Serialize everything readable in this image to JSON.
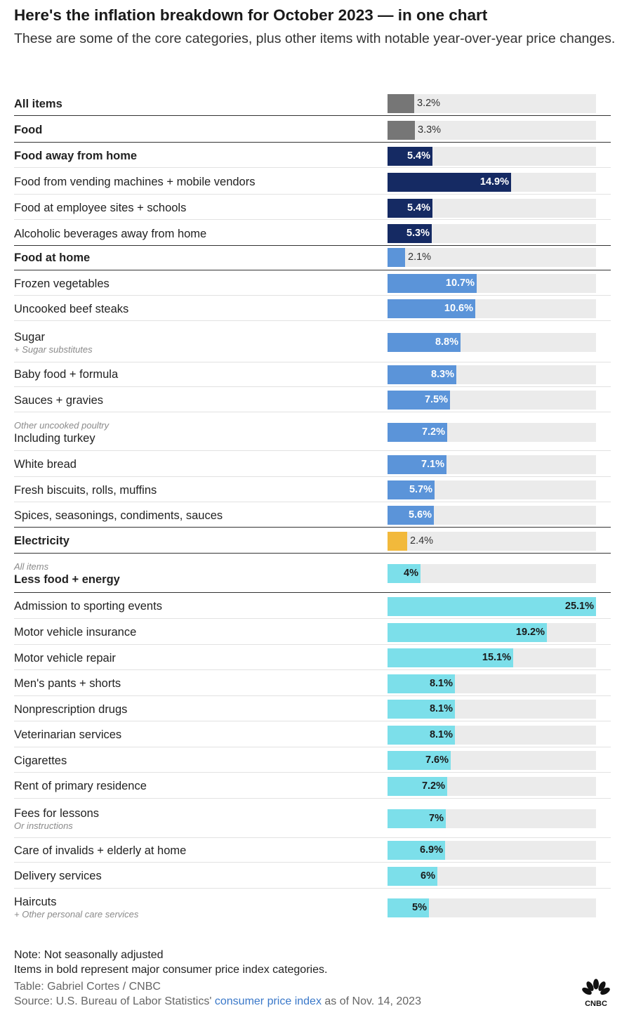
{
  "header": {
    "title": "Here's the inflation breakdown for October 2023 — in one chart",
    "subtitle": "These are some of the core categories, plus other items with notable year-over-year price changes."
  },
  "colors": {
    "grey": "#767676",
    "navy": "#152a63",
    "blue": "#5b94d9",
    "yellow": "#f2b93b",
    "teal": "#7cdfea",
    "track": "#ebebeb"
  },
  "chart_data": {
    "type": "bar",
    "orientation": "horizontal",
    "unit": "%",
    "xlim": [
      0,
      25.1
    ],
    "rows": [
      {
        "label": "All items",
        "value": 3.2,
        "display": "3.2%",
        "bold": true,
        "group": "grey"
      },
      {
        "label": "Food",
        "value": 3.3,
        "display": "3.3%",
        "bold": true,
        "group": "grey"
      },
      {
        "label": "Food away from home",
        "value": 5.4,
        "display": "5.4%",
        "bold": true,
        "group": "navy"
      },
      {
        "label": "Food from vending machines + mobile vendors",
        "value": 14.9,
        "display": "14.9%",
        "bold": false,
        "group": "navy"
      },
      {
        "label": "Food at employee sites + schools",
        "value": 5.4,
        "display": "5.4%",
        "bold": false,
        "group": "navy"
      },
      {
        "label": "Alcoholic beverages away from home",
        "value": 5.3,
        "display": "5.3%",
        "bold": false,
        "group": "navy"
      },
      {
        "label": "Food at home",
        "value": 2.1,
        "display": "2.1%",
        "bold": true,
        "group": "blue"
      },
      {
        "label": "Frozen vegetables",
        "value": 10.7,
        "display": "10.7%",
        "bold": false,
        "group": "blue"
      },
      {
        "label": "Uncooked beef steaks",
        "value": 10.6,
        "display": "10.6%",
        "bold": false,
        "group": "blue"
      },
      {
        "label": "Sugar",
        "note_below": "+ Sugar substitutes",
        "value": 8.8,
        "display": "8.8%",
        "bold": false,
        "group": "blue"
      },
      {
        "label": "Baby food + formula",
        "value": 8.3,
        "display": "8.3%",
        "bold": false,
        "group": "blue"
      },
      {
        "label": "Sauces + gravies",
        "value": 7.5,
        "display": "7.5%",
        "bold": false,
        "group": "blue"
      },
      {
        "label": "Including turkey",
        "note_above": "Other uncooked poultry",
        "value": 7.2,
        "display": "7.2%",
        "bold": false,
        "group": "blue"
      },
      {
        "label": "White bread",
        "value": 7.1,
        "display": "7.1%",
        "bold": false,
        "group": "blue"
      },
      {
        "label": "Fresh biscuits, rolls, muffins",
        "value": 5.7,
        "display": "5.7%",
        "bold": false,
        "group": "blue"
      },
      {
        "label": "Spices, seasonings, condiments, sauces",
        "value": 5.6,
        "display": "5.6%",
        "bold": false,
        "group": "blue"
      },
      {
        "label": "Electricity",
        "value": 2.4,
        "display": "2.4%",
        "bold": true,
        "group": "yellow"
      },
      {
        "label": "Less food + energy",
        "note_above": "All items",
        "value": 4,
        "display": "4%",
        "bold": true,
        "group": "teal"
      },
      {
        "label": "Admission to sporting events",
        "value": 25.1,
        "display": "25.1%",
        "bold": false,
        "group": "teal"
      },
      {
        "label": "Motor vehicle insurance",
        "value": 19.2,
        "display": "19.2%",
        "bold": false,
        "group": "teal"
      },
      {
        "label": "Motor vehicle repair",
        "value": 15.1,
        "display": "15.1%",
        "bold": false,
        "group": "teal"
      },
      {
        "label": "Men's pants + shorts",
        "value": 8.1,
        "display": "8.1%",
        "bold": false,
        "group": "teal"
      },
      {
        "label": "Nonprescription drugs",
        "value": 8.1,
        "display": "8.1%",
        "bold": false,
        "group": "teal"
      },
      {
        "label": "Veterinarian services",
        "value": 8.1,
        "display": "8.1%",
        "bold": false,
        "group": "teal"
      },
      {
        "label": "Cigarettes",
        "value": 7.6,
        "display": "7.6%",
        "bold": false,
        "group": "teal"
      },
      {
        "label": "Rent of primary residence",
        "value": 7.2,
        "display": "7.2%",
        "bold": false,
        "group": "teal"
      },
      {
        "label": "Fees for lessons",
        "note_below": "Or instructions",
        "value": 7,
        "display": "7%",
        "bold": false,
        "group": "teal"
      },
      {
        "label": "Care of invalids + elderly at home",
        "value": 6.9,
        "display": "6.9%",
        "bold": false,
        "group": "teal"
      },
      {
        "label": "Delivery services",
        "value": 6,
        "display": "6%",
        "bold": false,
        "group": "teal"
      },
      {
        "label": "Haircuts",
        "note_below": "+ Other personal care services",
        "value": 5,
        "display": "5%",
        "bold": false,
        "group": "teal"
      }
    ]
  },
  "footer": {
    "note1": "Note: Not seasonally adjusted",
    "note2": "Items in bold represent major consumer price index categories.",
    "credit": "Table: Gabriel Cortes / CNBC",
    "source_prefix": "Source: U.S. Bureau of Labor Statistics'",
    "source_link": "consumer price index",
    "source_suffix": "as of Nov. 14, 2023"
  },
  "logo": {
    "icon": "cnbc-peacock-icon",
    "text": "CNBC"
  }
}
